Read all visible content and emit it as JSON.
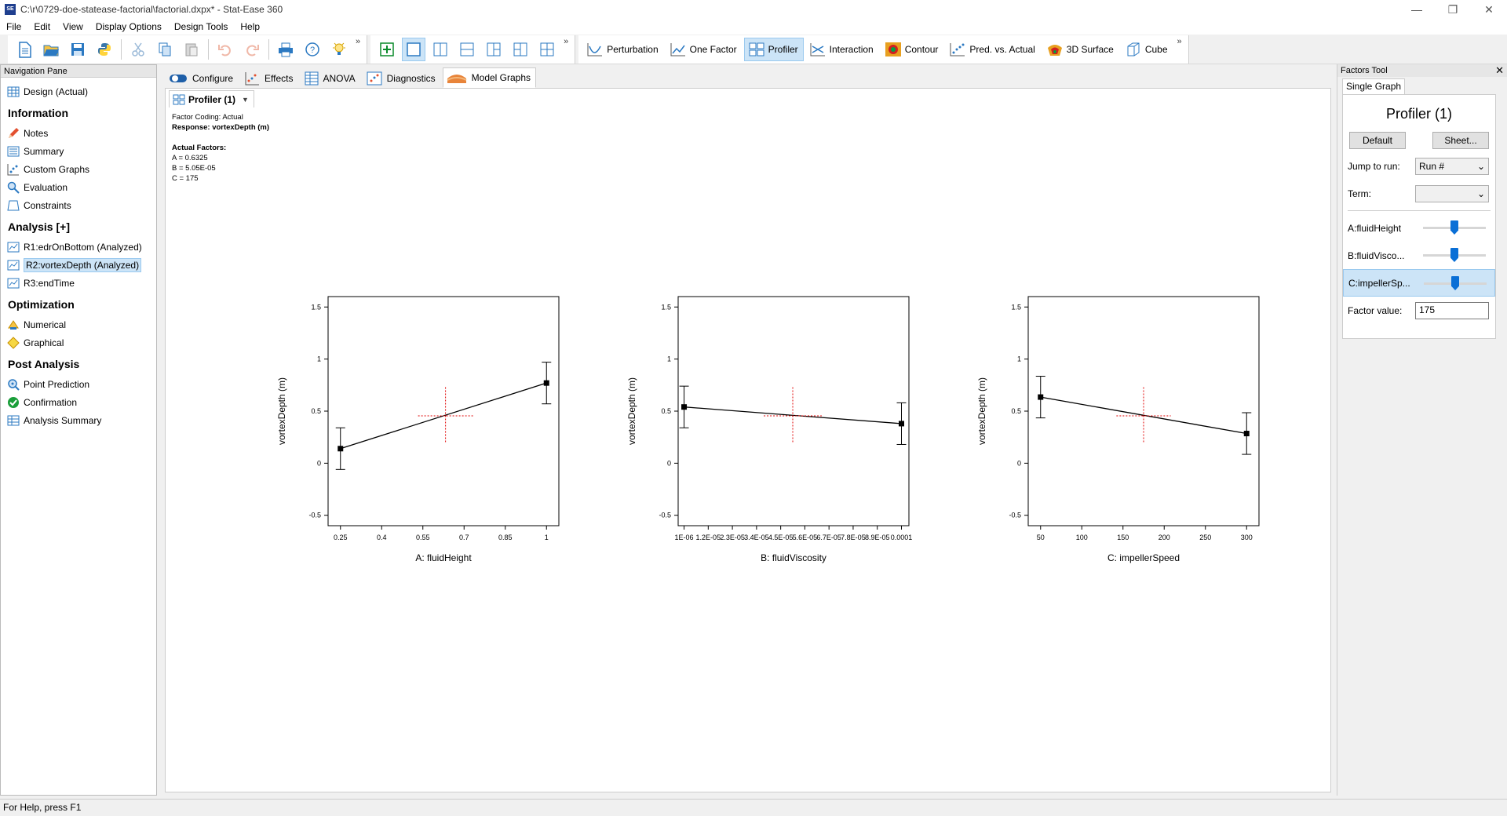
{
  "window": {
    "title": "C:\\r\\0729-doe-statease-factorial\\factorial.dxpx* - Stat-Ease 360",
    "icon_text": "SE"
  },
  "menu": [
    "File",
    "Edit",
    "View",
    "Display Options",
    "Design Tools",
    "Help"
  ],
  "toolbar": {
    "graph_buttons": [
      "Perturbation",
      "One Factor",
      "Profiler",
      "Interaction",
      "Contour",
      "Pred. vs. Actual",
      "3D Surface",
      "Cube"
    ],
    "active_graph": "Profiler"
  },
  "nav": {
    "header": "Navigation Pane",
    "design": "Design (Actual)",
    "sections": [
      {
        "title": "Information",
        "items": [
          "Notes",
          "Summary",
          "Custom Graphs",
          "Evaluation",
          "Constraints"
        ]
      },
      {
        "title": "Analysis [+]",
        "items": [
          "R1:edrOnBottom (Analyzed)",
          "R2:vortexDepth (Analyzed)",
          "R3:endTime"
        ]
      },
      {
        "title": "Optimization",
        "items": [
          "Numerical",
          "Graphical"
        ]
      },
      {
        "title": "Post Analysis",
        "items": [
          "Point Prediction",
          "Confirmation",
          "Analysis Summary"
        ]
      }
    ],
    "selected": "R2:vortexDepth (Analyzed)"
  },
  "main": {
    "tabs": [
      "Configure",
      "Effects",
      "ANOVA",
      "Diagnostics",
      "Model Graphs"
    ],
    "active_tab": "Model Graphs",
    "subtab": "Profiler (1)",
    "info": {
      "coding": "Factor Coding: Actual",
      "response": "Response: vortexDepth (m)",
      "factors_title": "Actual Factors:",
      "factors": [
        "A = 0.6325",
        "B = 5.05E-05",
        "C = 175"
      ]
    }
  },
  "chart_data": [
    {
      "type": "line",
      "xlabel": "A: fluidHeight",
      "ylabel": "vortexDepth (m)",
      "ylim": [
        -0.6,
        1.6
      ],
      "yticks": [
        "1.5",
        "1",
        "0.5",
        "0",
        "-0.5"
      ],
      "xticks": [
        "0.25",
        "0.4",
        "0.55",
        "0.7",
        "0.85",
        "1"
      ],
      "xlim": [
        0.205,
        1.045
      ],
      "points": [
        {
          "x": 0.25,
          "y": 0.14,
          "lo": -0.06,
          "hi": 0.34
        },
        {
          "x": 1.0,
          "y": 0.77,
          "lo": 0.57,
          "hi": 0.97
        }
      ],
      "crosshair": {
        "x": 0.6325,
        "y": 0.455,
        "ylo": 0.2,
        "yhi": 0.73,
        "half_x": 0.1
      }
    },
    {
      "type": "line",
      "xlabel": "B: fluidViscosity",
      "ylabel": "vortexDepth (m)",
      "ylim": [
        -0.6,
        1.6
      ],
      "yticks": [
        "1.5",
        "1",
        "0.5",
        "0",
        "-0.5"
      ],
      "xticks": [
        "1E-06",
        "1.2E-05",
        "2.3E-05",
        "3.4E-05",
        "4.5E-05",
        "5.6E-05",
        "6.7E-05",
        "7.8E-05",
        "8.9E-05",
        "0.0001"
      ],
      "xlim": [
        -1.7e-06,
        0.0001034
      ],
      "points": [
        {
          "x": 1e-06,
          "y": 0.54,
          "lo": 0.34,
          "hi": 0.74
        },
        {
          "x": 0.0001,
          "y": 0.38,
          "lo": 0.18,
          "hi": 0.58
        }
      ],
      "crosshair": {
        "x": 5.05e-05,
        "y": 0.455,
        "ylo": 0.2,
        "yhi": 0.73,
        "half_x": 1.32e-05
      }
    },
    {
      "type": "line",
      "xlabel": "C: impellerSpeed",
      "ylabel": "vortexDepth (m)",
      "ylim": [
        -0.6,
        1.6
      ],
      "yticks": [
        "1.5",
        "1",
        "0.5",
        "0",
        "-0.5"
      ],
      "xticks": [
        "50",
        "100",
        "150",
        "200",
        "250",
        "300"
      ],
      "xlim": [
        35,
        315
      ],
      "points": [
        {
          "x": 50,
          "y": 0.635,
          "lo": 0.435,
          "hi": 0.835
        },
        {
          "x": 300,
          "y": 0.285,
          "lo": 0.085,
          "hi": 0.485
        }
      ],
      "crosshair": {
        "x": 175,
        "y": 0.455,
        "ylo": 0.2,
        "yhi": 0.73,
        "half_x": 33
      }
    }
  ],
  "factors_tool": {
    "header": "Factors Tool",
    "tab": "Single Graph",
    "title": "Profiler (1)",
    "default_btn": "Default",
    "sheet_btn": "Sheet...",
    "jump_label": "Jump to run:",
    "jump_value": "Run #",
    "term_label": "Term:",
    "term_value": "",
    "factors": [
      {
        "label": "A:fluidHeight",
        "level": 0.5
      },
      {
        "label": "B:fluidVisco...",
        "level": 0.5
      },
      {
        "label": "C:impellerSp...",
        "level": 0.5
      }
    ],
    "selected_factor": "C:impellerSp...",
    "factor_value_label": "Factor value:",
    "factor_value": "175"
  },
  "status": "For Help, press F1"
}
